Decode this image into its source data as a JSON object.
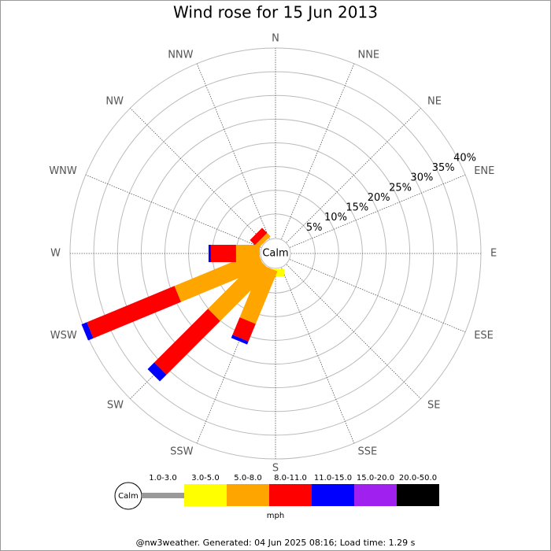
{
  "chart_data": {
    "type": "windrose",
    "title": "Wind rose for 15 Jun 2013",
    "directions": [
      "N",
      "NNE",
      "NE",
      "ENE",
      "E",
      "ESE",
      "SE",
      "SSE",
      "S",
      "SSW",
      "SW",
      "WSW",
      "W",
      "WNW",
      "NW",
      "NNW"
    ],
    "calm_label": "Calm",
    "rlim": [
      0,
      40
    ],
    "rticks": [
      {
        "value": 5,
        "label": "5%"
      },
      {
        "value": 10,
        "label": "10%"
      },
      {
        "value": 15,
        "label": "15%"
      },
      {
        "value": 20,
        "label": "20%"
      },
      {
        "value": 25,
        "label": "25%"
      },
      {
        "value": 30,
        "label": "30%"
      },
      {
        "value": 35,
        "label": "35%"
      },
      {
        "value": 40,
        "label": "40%"
      }
    ],
    "series": [
      {
        "name": "1.0-3.0",
        "color": "#999999",
        "values": [
          0,
          0,
          0,
          0,
          0,
          0,
          0,
          0,
          0,
          0,
          0,
          0,
          0,
          0,
          0,
          0
        ]
      },
      {
        "name": "3.0-5.0",
        "color": "#ffff00",
        "values": [
          0,
          0,
          0,
          0,
          0,
          0,
          0,
          0,
          1.5,
          0,
          0,
          0,
          0,
          0,
          0,
          0
        ]
      },
      {
        "name": "5.0-8.0",
        "color": "#ffa500",
        "values": [
          0,
          0,
          0,
          0,
          0,
          0,
          0,
          0,
          0,
          12,
          15,
          19,
          5,
          0,
          1,
          0
        ]
      },
      {
        "name": "8.0-11.0",
        "color": "#ff0000",
        "values": [
          0,
          0,
          0,
          0,
          0,
          0,
          0,
          0,
          0,
          4,
          16,
          20,
          5.3,
          0,
          1.5,
          0
        ]
      },
      {
        "name": "11.0-15.0",
        "color": "#0000ff",
        "values": [
          0,
          0,
          0,
          0,
          0,
          0,
          0,
          0,
          0,
          0.7,
          2,
          1.2,
          0.5,
          0,
          0,
          0
        ]
      },
      {
        "name": "15.0-20.0",
        "color": "#a020f0",
        "values": [
          0,
          0,
          0,
          0,
          0,
          0,
          0,
          0,
          0,
          0,
          0,
          0,
          0,
          0,
          0,
          0
        ]
      },
      {
        "name": "20.0-50.0",
        "color": "#000000",
        "values": [
          0,
          0,
          0,
          0,
          0,
          0,
          0,
          0,
          0,
          0,
          0,
          0,
          0,
          0,
          0,
          0
        ]
      }
    ],
    "units": "mph",
    "footer": "@nw3weather. Generated: 04 Jun 2025 08:16; Load time: 1.29 s"
  }
}
